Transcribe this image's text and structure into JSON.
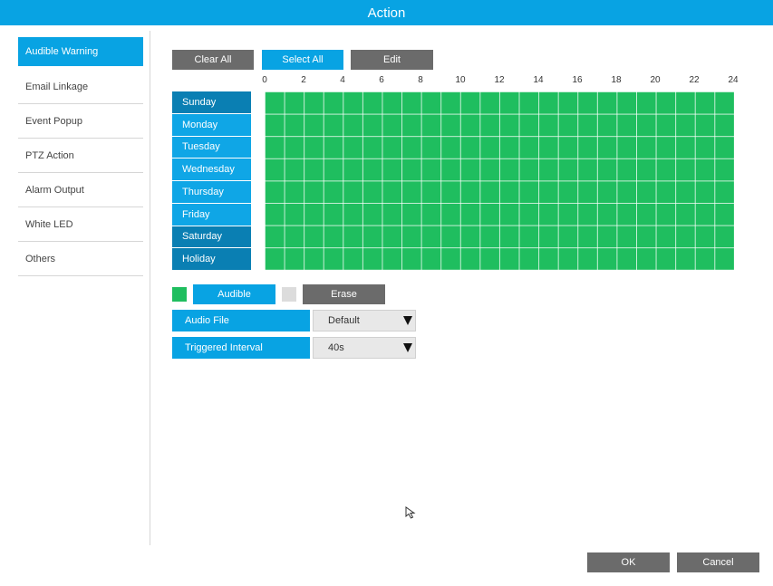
{
  "window": {
    "title": "Action"
  },
  "sidebar": {
    "items": [
      {
        "label": "Audible Warning",
        "active": true
      },
      {
        "label": "Email Linkage",
        "active": false
      },
      {
        "label": "Event Popup",
        "active": false
      },
      {
        "label": "PTZ Action",
        "active": false
      },
      {
        "label": "Alarm Output",
        "active": false
      },
      {
        "label": "White LED",
        "active": false
      },
      {
        "label": "Others",
        "active": false
      }
    ]
  },
  "toolbar": {
    "clear_all": "Clear All",
    "select_all": "Select All",
    "edit": "Edit"
  },
  "schedule": {
    "hour_labels": [
      "0",
      "2",
      "4",
      "6",
      "8",
      "10",
      "12",
      "14",
      "16",
      "18",
      "20",
      "22",
      "24"
    ],
    "days": [
      "Sunday",
      "Monday",
      "Tuesday",
      "Wednesday",
      "Thursday",
      "Friday",
      "Saturday",
      "Holiday"
    ],
    "all_selected": true,
    "selected_color": "#1fbe5f"
  },
  "legend": {
    "audible": "Audible",
    "erase": "Erase"
  },
  "settings": {
    "audio_file": {
      "label": "Audio File",
      "value": "Default"
    },
    "triggered_interval": {
      "label": "Triggered Interval",
      "value": "40s"
    }
  },
  "footer": {
    "ok": "OK",
    "cancel": "Cancel"
  },
  "colors": {
    "accent": "#08a3e3",
    "button_gray": "#6b6b6b",
    "day_dark": "#0a7fb3"
  }
}
